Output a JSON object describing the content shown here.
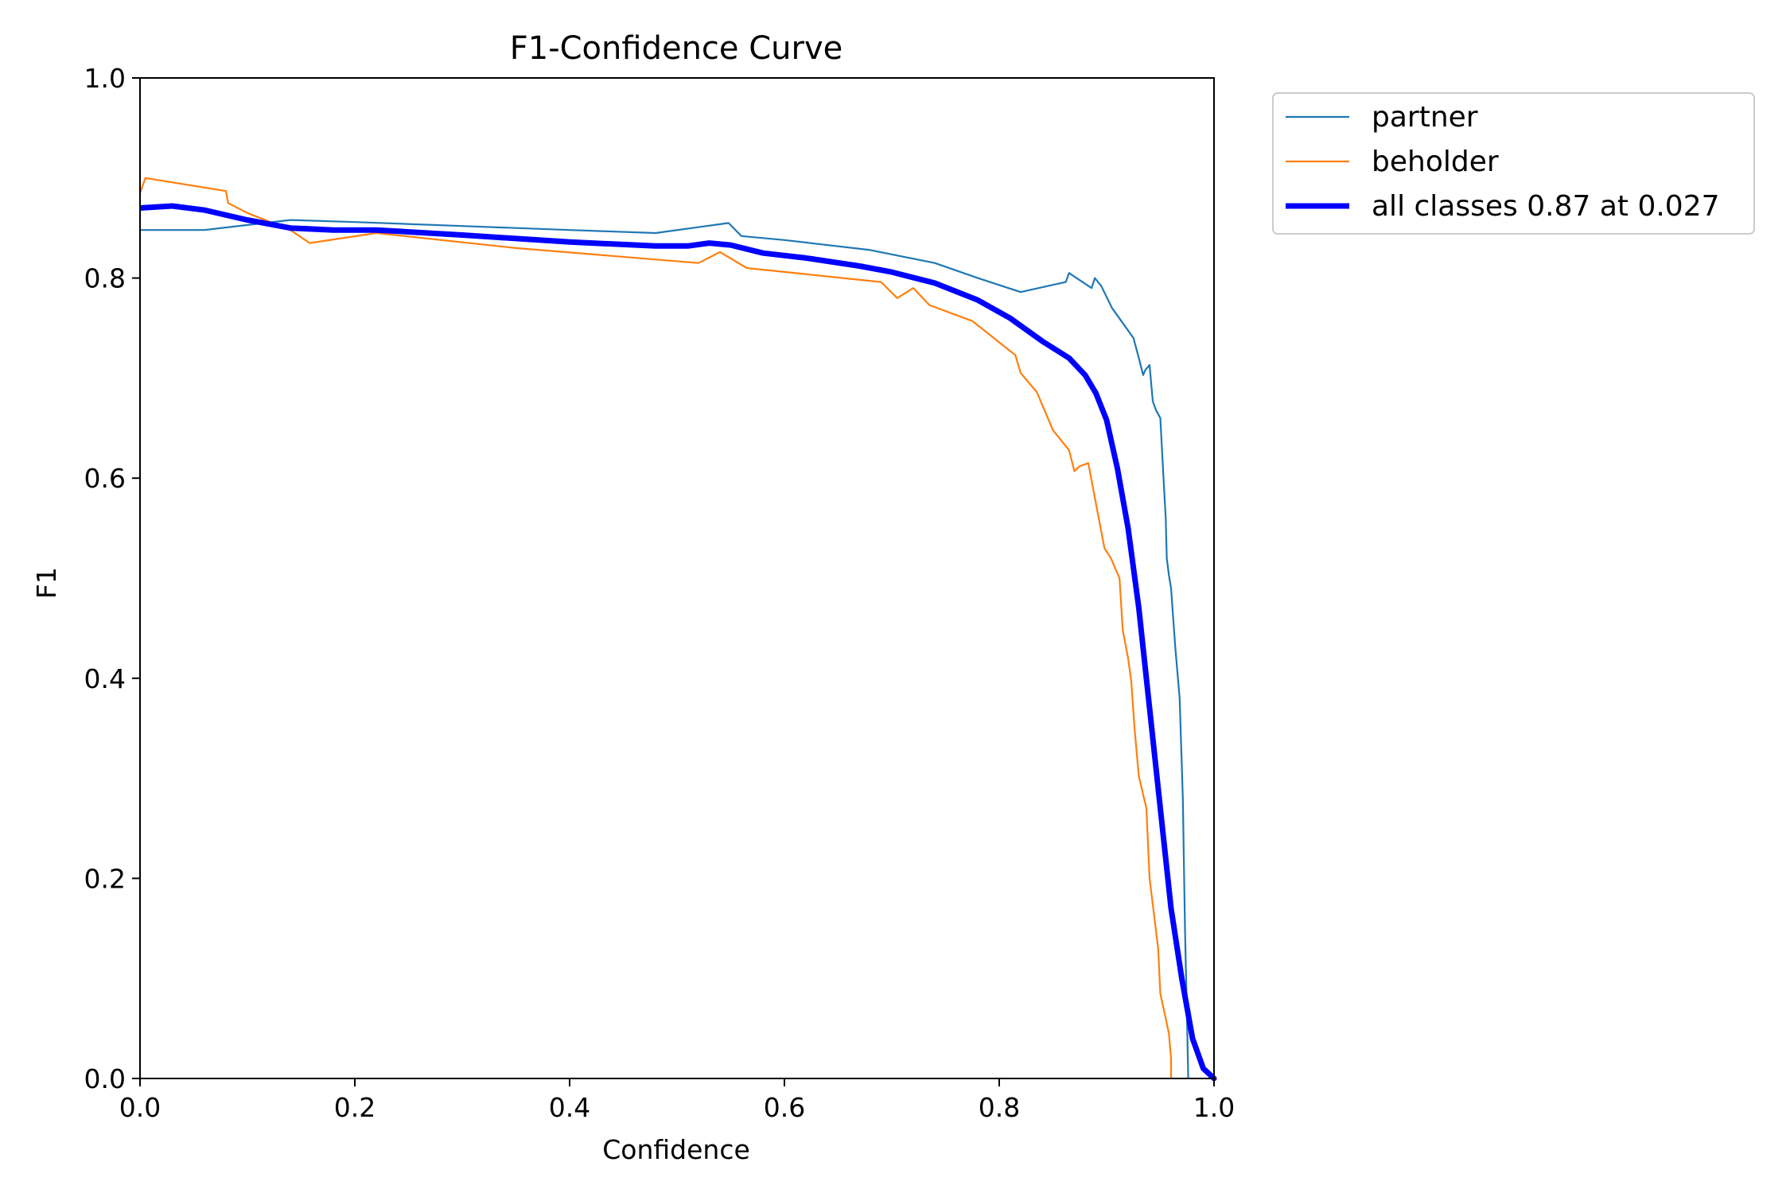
{
  "chart_data": {
    "type": "line",
    "title": "F1-Confidence Curve",
    "xlabel": "Confidence",
    "ylabel": "F1",
    "xlim": [
      0.0,
      1.0
    ],
    "ylim": [
      0.0,
      1.0
    ],
    "xticks": [
      "0.0",
      "0.2",
      "0.4",
      "0.6",
      "0.8",
      "1.0"
    ],
    "yticks": [
      "0.0",
      "0.2",
      "0.4",
      "0.6",
      "0.8",
      "1.0"
    ],
    "grid": false,
    "legend_position": "outside top-right",
    "series": [
      {
        "name": "partner",
        "color": "#1f77b4",
        "width": "thin",
        "x": [
          0.0,
          0.06,
          0.1,
          0.14,
          0.2,
          0.3,
          0.4,
          0.48,
          0.548,
          0.56,
          0.6,
          0.68,
          0.74,
          0.78,
          0.82,
          0.862,
          0.865,
          0.886,
          0.889,
          0.895,
          0.905,
          0.915,
          0.925,
          0.93,
          0.934,
          0.936,
          0.94,
          0.943,
          0.946,
          0.95,
          0.953,
          0.955,
          0.956,
          0.958,
          0.96,
          0.962,
          0.964,
          0.968,
          0.971,
          0.973,
          0.975,
          0.976
        ],
        "y": [
          0.848,
          0.848,
          0.853,
          0.858,
          0.856,
          0.852,
          0.848,
          0.845,
          0.855,
          0.842,
          0.838,
          0.828,
          0.815,
          0.8,
          0.786,
          0.796,
          0.805,
          0.79,
          0.8,
          0.792,
          0.77,
          0.755,
          0.74,
          0.72,
          0.703,
          0.708,
          0.713,
          0.677,
          0.668,
          0.66,
          0.6,
          0.56,
          0.52,
          0.503,
          0.49,
          0.46,
          0.43,
          0.38,
          0.28,
          0.15,
          0.05,
          0.0
        ]
      },
      {
        "name": "beholder",
        "color": "#ff7f0e",
        "width": "thin",
        "x": [
          0.0,
          0.005,
          0.08,
          0.082,
          0.1,
          0.14,
          0.158,
          0.22,
          0.35,
          0.52,
          0.54,
          0.565,
          0.69,
          0.705,
          0.72,
          0.735,
          0.775,
          0.815,
          0.82,
          0.835,
          0.85,
          0.865,
          0.87,
          0.875,
          0.883,
          0.89,
          0.898,
          0.904,
          0.912,
          0.915,
          0.92,
          0.923,
          0.926,
          0.93,
          0.937,
          0.94,
          0.948,
          0.95,
          0.955,
          0.958,
          0.96,
          0.96
        ],
        "y": [
          0.885,
          0.9,
          0.887,
          0.875,
          0.865,
          0.848,
          0.835,
          0.845,
          0.83,
          0.815,
          0.826,
          0.81,
          0.796,
          0.78,
          0.79,
          0.773,
          0.757,
          0.723,
          0.705,
          0.686,
          0.648,
          0.628,
          0.607,
          0.612,
          0.615,
          0.575,
          0.53,
          0.52,
          0.5,
          0.448,
          0.42,
          0.397,
          0.35,
          0.302,
          0.27,
          0.2,
          0.13,
          0.085,
          0.06,
          0.045,
          0.02,
          0.0
        ]
      },
      {
        "name": "all classes 0.87 at 0.027",
        "color": "#0000ff",
        "width": "thick",
        "x": [
          0.0,
          0.03,
          0.06,
          0.1,
          0.14,
          0.18,
          0.22,
          0.3,
          0.4,
          0.48,
          0.51,
          0.53,
          0.55,
          0.58,
          0.62,
          0.67,
          0.7,
          0.74,
          0.78,
          0.81,
          0.84,
          0.865,
          0.88,
          0.89,
          0.9,
          0.91,
          0.92,
          0.93,
          0.94,
          0.95,
          0.96,
          0.97,
          0.98,
          0.99,
          1.0
        ],
        "y": [
          0.87,
          0.872,
          0.868,
          0.858,
          0.85,
          0.848,
          0.848,
          0.843,
          0.836,
          0.832,
          0.832,
          0.835,
          0.833,
          0.825,
          0.82,
          0.812,
          0.806,
          0.795,
          0.778,
          0.76,
          0.737,
          0.72,
          0.703,
          0.685,
          0.658,
          0.61,
          0.55,
          0.47,
          0.37,
          0.27,
          0.17,
          0.1,
          0.04,
          0.01,
          0.0
        ]
      }
    ]
  }
}
